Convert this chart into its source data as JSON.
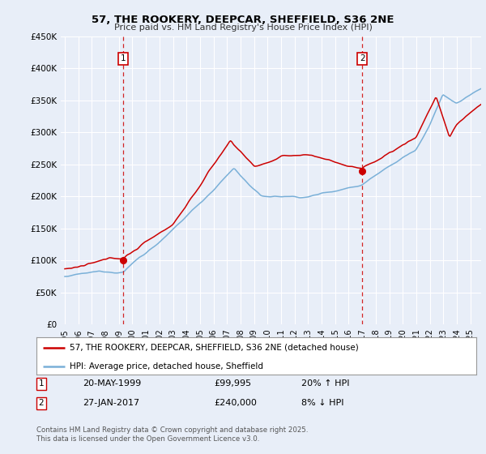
{
  "title": "57, THE ROOKERY, DEEPCAR, SHEFFIELD, S36 2NE",
  "subtitle": "Price paid vs. HM Land Registry's House Price Index (HPI)",
  "ylim": [
    0,
    450000
  ],
  "yticks": [
    0,
    50000,
    100000,
    150000,
    200000,
    250000,
    300000,
    350000,
    400000,
    450000
  ],
  "ytick_labels": [
    "£0",
    "£50K",
    "£100K",
    "£150K",
    "£200K",
    "£250K",
    "£300K",
    "£350K",
    "£400K",
    "£450K"
  ],
  "hpi_color": "#7ab0d8",
  "price_color": "#cc0000",
  "vline_color": "#cc0000",
  "sale1_date": "20-MAY-1999",
  "sale1_price": "£99,995",
  "sale1_hpi": "20% ↑ HPI",
  "sale2_date": "27-JAN-2017",
  "sale2_price": "£240,000",
  "sale2_hpi": "8% ↓ HPI",
  "legend1": "57, THE ROOKERY, DEEPCAR, SHEFFIELD, S36 2NE (detached house)",
  "legend2": "HPI: Average price, detached house, Sheffield",
  "footer": "Contains HM Land Registry data © Crown copyright and database right 2025.\nThis data is licensed under the Open Government Licence v3.0.",
  "bg_color": "#e8eef8",
  "plot_bg": "#e8eef8"
}
